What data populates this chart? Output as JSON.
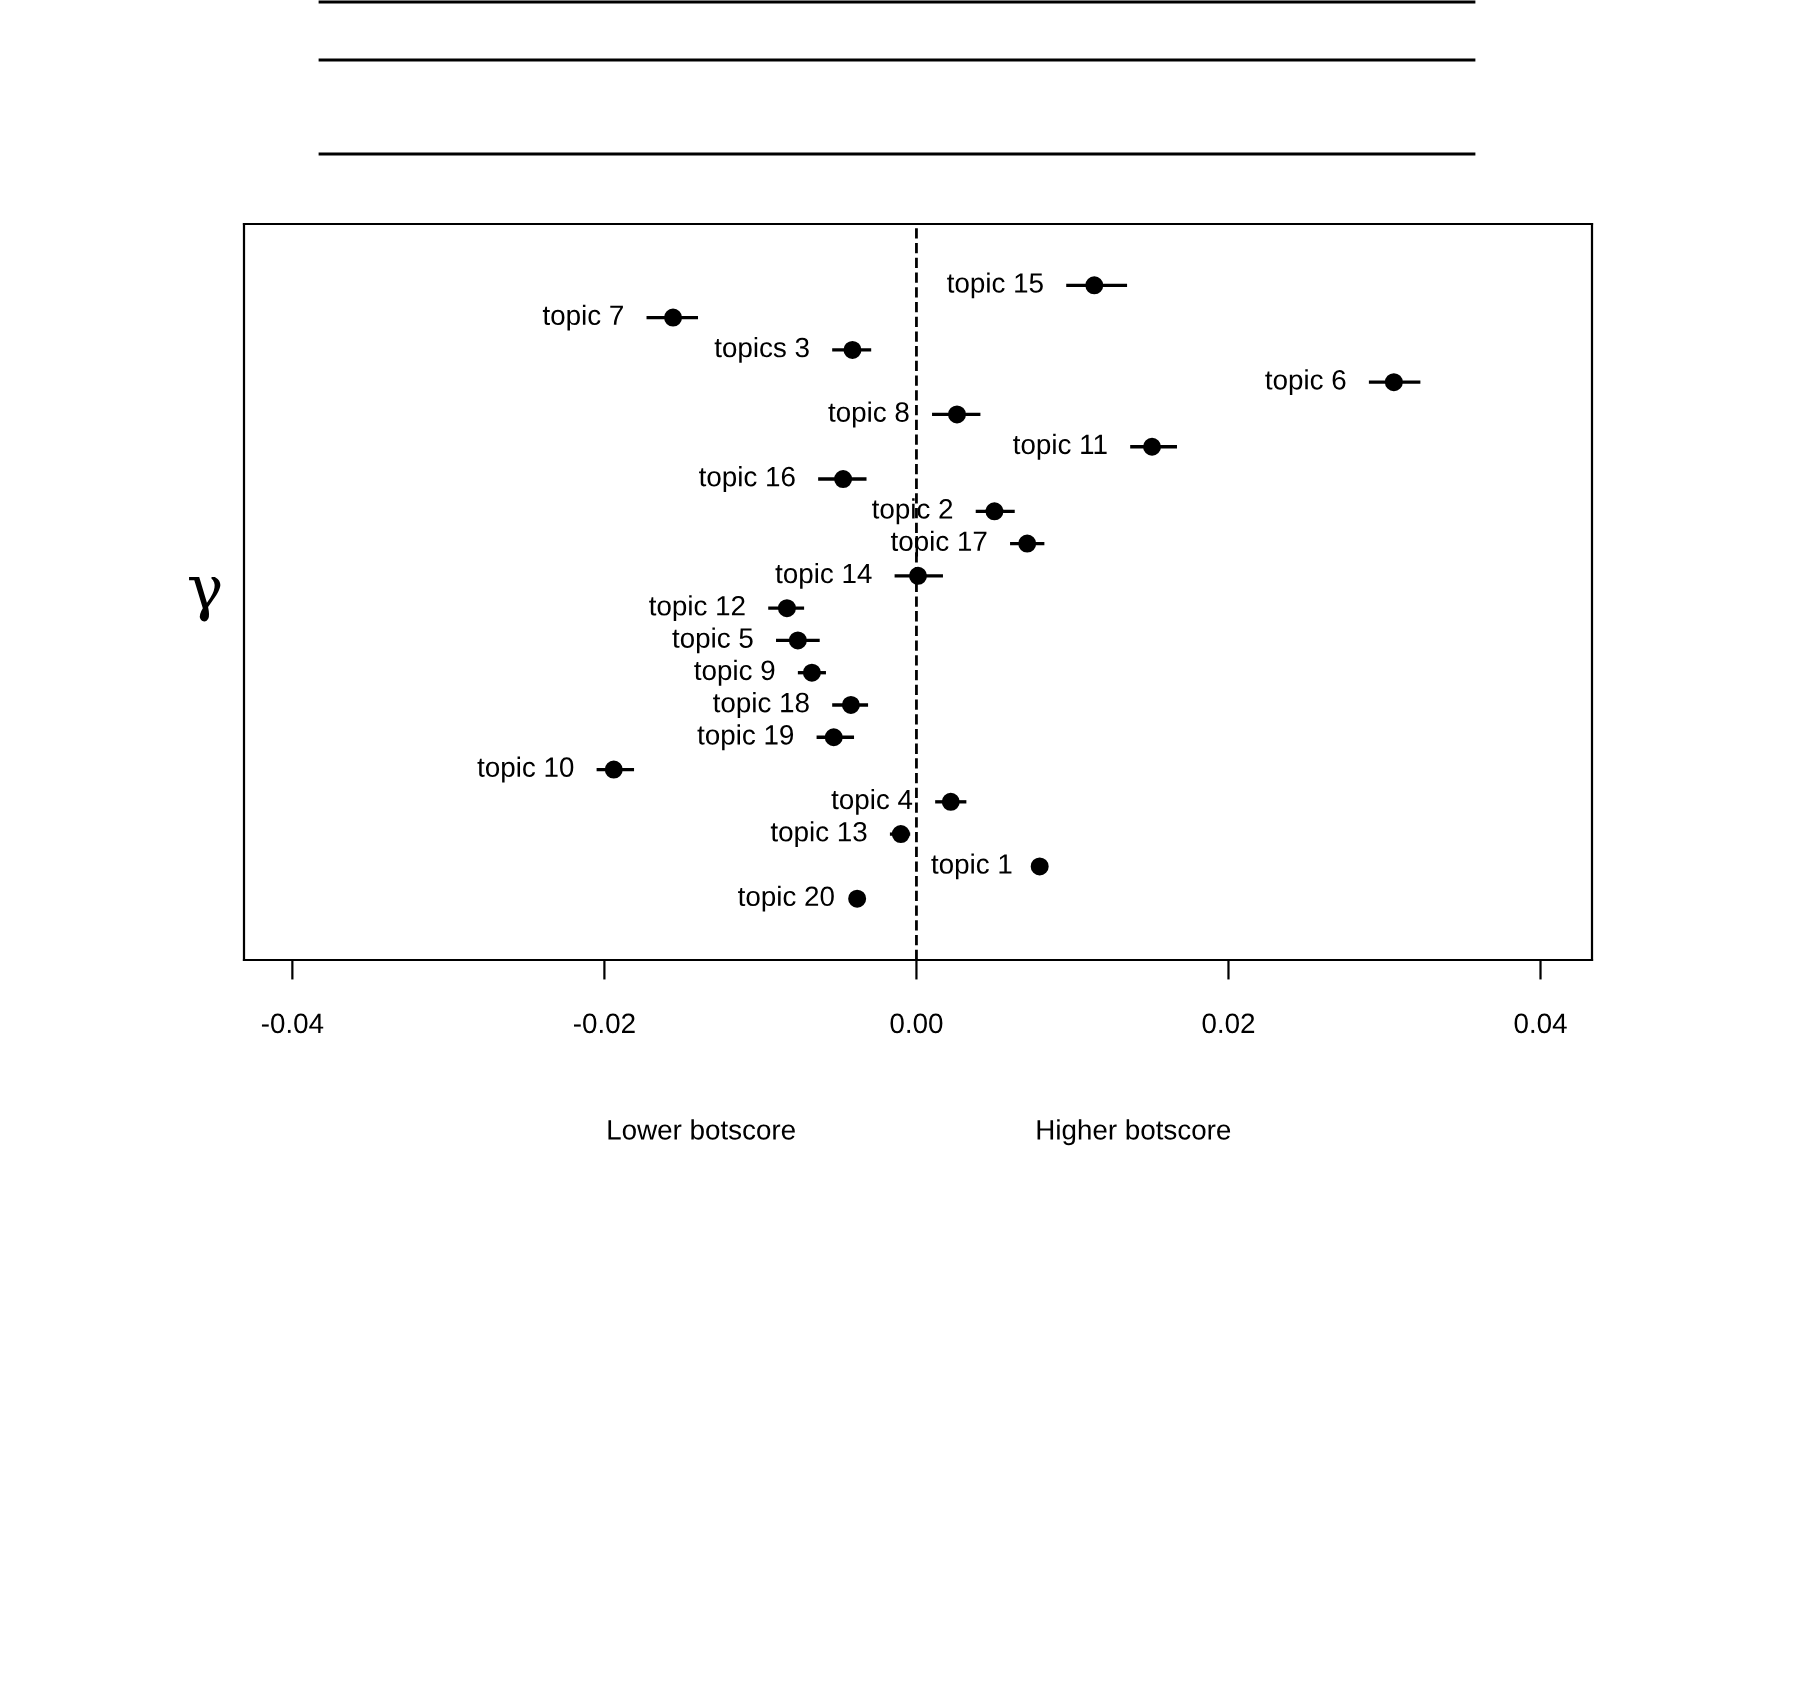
{
  "chart_data": {
    "type": "scatter",
    "orientation": "horizontal",
    "ylabel": "γ",
    "categories": [
      "topic 15",
      "topic 7",
      "topics 3",
      "topic 6",
      "topic 8",
      "topic 11",
      "topic 16",
      "topic 2",
      "topic 17",
      "topic 14",
      "topic 12",
      "topic 5",
      "topic 9",
      "topic 18",
      "topic 19",
      "topic 10",
      "topic 4",
      "topic 13",
      "topic 1",
      "topic 20"
    ],
    "values": [
      0.0114,
      -0.0156,
      -0.0041,
      0.0306,
      0.0026,
      0.0151,
      -0.0047,
      0.005,
      0.0071,
      0.0001,
      -0.0083,
      -0.0076,
      -0.0067,
      -0.0042,
      -0.0053,
      -0.0194,
      0.0022,
      -0.001,
      0.0079,
      -0.0038
    ],
    "errors": [
      [
        0.0096,
        0.0135
      ],
      [
        -0.0173,
        -0.014
      ],
      [
        -0.0054,
        -0.0029
      ],
      [
        0.029,
        0.0323
      ],
      [
        0.001,
        0.0041
      ],
      [
        0.0137,
        0.0167
      ],
      [
        -0.0063,
        -0.0032
      ],
      [
        0.0038,
        0.0063
      ],
      [
        0.006,
        0.0082
      ],
      [
        -0.0014,
        0.0017
      ],
      [
        -0.0095,
        -0.0072
      ],
      [
        -0.009,
        -0.0062
      ],
      [
        -0.0076,
        -0.0058
      ],
      [
        -0.0054,
        -0.0031
      ],
      [
        -0.0064,
        -0.004
      ],
      [
        -0.0205,
        -0.0181
      ],
      [
        0.0012,
        0.0032
      ],
      [
        -0.0017,
        -0.0004
      ],
      [
        0.0076,
        0.0083
      ],
      null
    ],
    "color": "#000000",
    "marker": "circle",
    "xlim": [
      -0.0431,
      0.0433
    ],
    "xticks": [
      {
        "value": -0.04,
        "label": "-0.04"
      },
      {
        "value": -0.02,
        "label": "-0.02"
      },
      {
        "value": 0,
        "label": "0.00"
      },
      {
        "value": 0.02,
        "label": "0.02"
      },
      {
        "value": 0.04,
        "label": "0.04"
      }
    ],
    "ref_lines": [
      {
        "axis": "x",
        "value": 0,
        "line_style": "dashed",
        "color": "#000000"
      }
    ],
    "annotations": [
      "Lower botscore",
      "Higher botscore"
    ],
    "tick_labels": "x",
    "grid": false,
    "legend": false
  }
}
